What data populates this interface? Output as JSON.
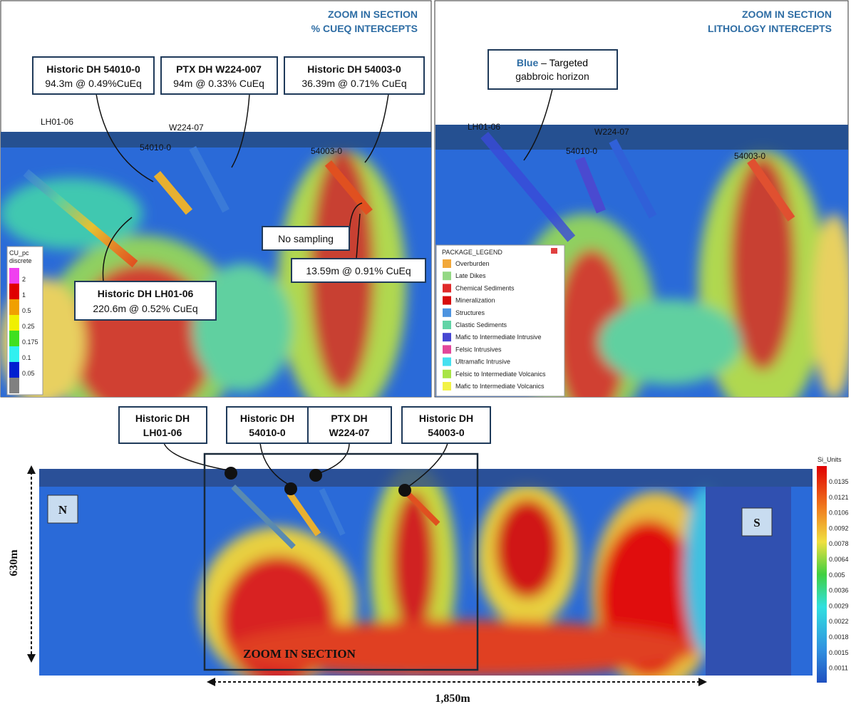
{
  "zoom_cueq": {
    "title": [
      "ZOOM IN SECTION",
      "% CUEQ INTERCEPTS"
    ],
    "callouts": [
      {
        "title": "Historic DH 54010-0",
        "text": "94.3m @ 0.49%CuEq"
      },
      {
        "title": "PTX DH W224-007",
        "text": "94m @ 0.33% CuEq"
      },
      {
        "title": "Historic DH 54003-0",
        "text": "36.39m @ 0.71% CuEq"
      },
      {
        "title": "Historic DH LH01-06",
        "text": "220.6m @ 0.52% CuEq"
      }
    ],
    "notes": [
      "No sampling",
      "13.59m @ 0.91% CuEq"
    ],
    "hole_labels": [
      "LH01-06",
      "W224-07",
      "54010-0",
      "54003-0"
    ],
    "legend": {
      "title": "CU_pc",
      "subtitle": "discrete",
      "labels": [
        "2",
        "1",
        "0.5",
        "0.25",
        "0.175",
        "0.1",
        "0.05"
      ]
    }
  },
  "zoom_lithology": {
    "title": [
      "ZOOM IN SECTION",
      "LITHOLOGY INTERCEPTS"
    ],
    "callout": {
      "highlight": "Blue",
      "text": "– Targeted",
      "text2": "gabbroic horizon"
    },
    "hole_labels": [
      "LH01-06",
      "W224-07",
      "54010-0",
      "54003-0"
    ],
    "legend": {
      "title": "PACKAGE_LEGEND",
      "items": [
        {
          "name": "Overburden",
          "color": "#f2a83a"
        },
        {
          "name": "Late Dikes",
          "color": "#94d884"
        },
        {
          "name": "Chemical Sediments",
          "color": "#e02a2a"
        },
        {
          "name": "Mineralization",
          "color": "#d80c0c"
        },
        {
          "name": "Structures",
          "color": "#4d94e0"
        },
        {
          "name": "Clastic Sediments",
          "color": "#62d4a6"
        },
        {
          "name": "Mafic to Intermediate Intrusive",
          "color": "#4646d2"
        },
        {
          "name": "Felsic Intrusives",
          "color": "#e2479a"
        },
        {
          "name": "Ultramafic Intrusive",
          "color": "#46e0f0"
        },
        {
          "name": "Felsic to Intermediate Volcanics",
          "color": "#a8e446"
        },
        {
          "name": "Mafic to Intermediate Volcanics",
          "color": "#f2f246"
        }
      ]
    }
  },
  "full_section": {
    "callouts": [
      [
        "Historic DH",
        "LH01-06"
      ],
      [
        "Historic DH",
        "54010-0"
      ],
      [
        "PTX DH",
        "W224-07"
      ],
      [
        "Historic DH",
        "54003-0"
      ]
    ],
    "north": "N",
    "south": "S",
    "depth": "630m",
    "length": "1,850m",
    "zoom_label": "ZOOM IN SECTION",
    "legend": {
      "title": "Si_Units",
      "labels": [
        "0.0135",
        "0.0121",
        "0.0106",
        "0.0092",
        "0.0078",
        "0.0064",
        "0.005",
        "0.0036",
        "0.0029",
        "0.0022",
        "0.0018",
        "0.0015",
        "0.0011"
      ]
    }
  }
}
